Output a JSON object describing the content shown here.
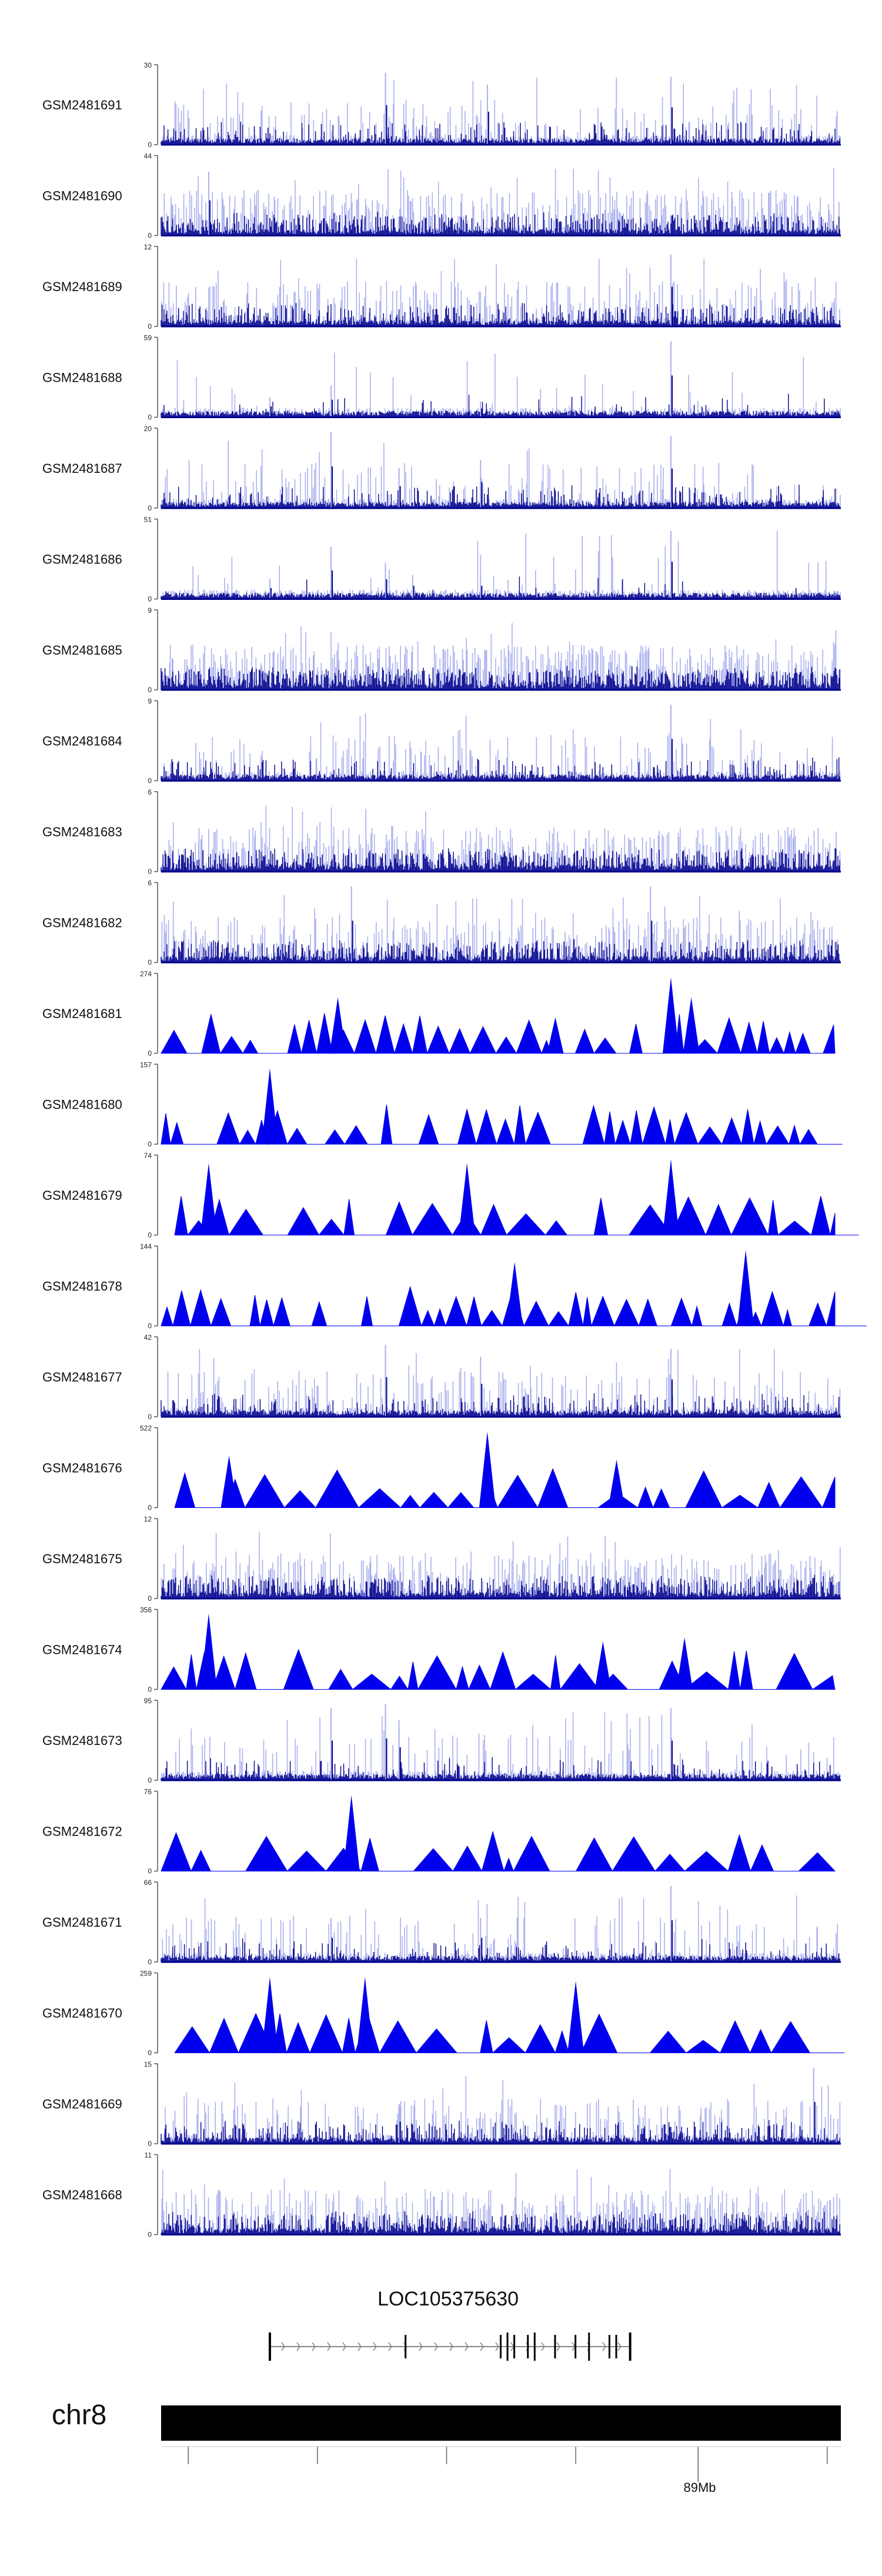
{
  "chart_data": {
    "type": "genome-browser-tracks",
    "chromosome": "chr8",
    "colors": {
      "signal_light": "#aab0ee",
      "signal_dark": "#00008b",
      "signal_fill": "#0000ee",
      "axis": "#555555",
      "gene": "#000000",
      "intron": "#888888",
      "chromosome": "#000000"
    },
    "tracks": [
      {
        "name": "GSM2481691",
        "ymax": 30,
        "style": "bars",
        "peaks": [
          0.33,
          0.48,
          0.75
        ],
        "peak_heights": [
          0.9,
          0.75,
          0.85
        ],
        "density": 0.25
      },
      {
        "name": "GSM2481690",
        "ymax": 44,
        "style": "bars",
        "peaks": [
          0.07
        ],
        "peak_heights": [
          0.8
        ],
        "density": 0.55
      },
      {
        "name": "GSM2481689",
        "ymax": 12,
        "style": "bars",
        "peaks": [
          0.75
        ],
        "peak_heights": [
          0.9
        ],
        "density": 0.4
      },
      {
        "name": "GSM2481688",
        "ymax": 59,
        "style": "bars",
        "peaks": [
          0.16,
          0.25,
          0.47,
          0.75
        ],
        "peak_heights": [
          0.25,
          0.4,
          0.2,
          0.95
        ],
        "density": 0.05
      },
      {
        "name": "GSM2481687",
        "ymax": 20,
        "style": "bars",
        "peaks": [
          0.25,
          0.35,
          0.47,
          0.75
        ],
        "peak_heights": [
          0.95,
          0.5,
          0.6,
          0.9
        ],
        "density": 0.2
      },
      {
        "name": "GSM2481686",
        "ymax": 51,
        "style": "bars",
        "peaks": [
          0.16,
          0.25,
          0.33,
          0.37,
          0.47,
          0.75
        ],
        "peak_heights": [
          0.25,
          0.65,
          0.45,
          0.3,
          0.3,
          0.85
        ],
        "density": 0.04
      },
      {
        "name": "GSM2481685",
        "ymax": 9,
        "style": "bars",
        "peaks": [],
        "peak_heights": [],
        "density": 0.7
      },
      {
        "name": "GSM2481684",
        "ymax": 9,
        "style": "bars",
        "peaks": [
          0.75
        ],
        "peak_heights": [
          0.95
        ],
        "density": 0.2
      },
      {
        "name": "GSM2481683",
        "ymax": 6,
        "style": "bars",
        "peaks": [],
        "peak_heights": [],
        "density": 0.6
      },
      {
        "name": "GSM2481682",
        "ymax": 6,
        "style": "bars",
        "peaks": [
          0.28,
          0.72
        ],
        "peak_heights": [
          0.95,
          0.95
        ],
        "density": 0.5
      },
      {
        "name": "GSM2481681",
        "ymax": 274,
        "style": "triangles",
        "peaks": [
          0.26,
          0.58,
          0.75,
          0.78
        ],
        "peak_heights": [
          0.7,
          0.45,
          0.95,
          0.7
        ],
        "density": 0.3
      },
      {
        "name": "GSM2481680",
        "ymax": 157,
        "style": "triangles",
        "peaks": [
          0.16
        ],
        "peak_heights": [
          0.95
        ],
        "density": 0.35
      },
      {
        "name": "GSM2481679",
        "ymax": 74,
        "style": "triangles",
        "peaks": [
          0.07,
          0.45,
          0.75
        ],
        "peak_heights": [
          0.9,
          0.9,
          0.95
        ],
        "density": 0.55
      },
      {
        "name": "GSM2481678",
        "ymax": 144,
        "style": "triangles",
        "peaks": [
          0.52,
          0.86
        ],
        "peak_heights": [
          0.8,
          0.95
        ],
        "density": 0.3
      },
      {
        "name": "GSM2481677",
        "ymax": 42,
        "style": "bars",
        "peaks": [
          0.33,
          0.47,
          0.75
        ],
        "peak_heights": [
          0.9,
          0.75,
          0.85
        ],
        "density": 0.25
      },
      {
        "name": "GSM2481676",
        "ymax": 522,
        "style": "triangles",
        "peaks": [
          0.1,
          0.48,
          0.67
        ],
        "peak_heights": [
          0.65,
          0.95,
          0.6
        ],
        "density": 0.45
      },
      {
        "name": "GSM2481675",
        "ymax": 12,
        "style": "bars",
        "peaks": [],
        "peak_heights": [],
        "density": 0.55
      },
      {
        "name": "GSM2481674",
        "ymax": 356,
        "style": "triangles",
        "peaks": [
          0.07,
          0.65,
          0.77
        ],
        "peak_heights": [
          0.95,
          0.6,
          0.65
        ],
        "density": 0.5
      },
      {
        "name": "GSM2481673",
        "ymax": 95,
        "style": "bars",
        "peaks": [
          0.25,
          0.33,
          0.35,
          0.75
        ],
        "peak_heights": [
          0.9,
          0.95,
          0.75,
          0.9
        ],
        "density": 0.15
      },
      {
        "name": "GSM2481672",
        "ymax": 76,
        "style": "triangles",
        "peaks": [
          0.28
        ],
        "peak_heights": [
          0.95
        ],
        "density": 0.7
      },
      {
        "name": "GSM2481671",
        "ymax": 66,
        "style": "bars",
        "peaks": [
          0.25,
          0.47,
          0.75
        ],
        "peak_heights": [
          0.55,
          0.55,
          0.95
        ],
        "density": 0.2
      },
      {
        "name": "GSM2481670",
        "ymax": 259,
        "style": "triangles",
        "peaks": [
          0.16,
          0.3,
          0.61
        ],
        "peak_heights": [
          0.95,
          0.95,
          0.9
        ],
        "density": 0.45
      },
      {
        "name": "GSM2481669",
        "ymax": 15,
        "style": "bars",
        "peaks": [
          0.35,
          0.96
        ],
        "peak_heights": [
          0.5,
          0.95
        ],
        "density": 0.35
      },
      {
        "name": "GSM2481668",
        "ymax": 11,
        "style": "bars",
        "peaks": [],
        "peak_heights": [],
        "density": 0.55
      }
    ],
    "gene": {
      "name": "LOC105375630",
      "start": 0.16,
      "end": 0.69,
      "strand": "+",
      "exons": [
        0.16,
        0.36,
        0.5,
        0.51,
        0.52,
        0.54,
        0.55,
        0.58,
        0.61,
        0.63,
        0.66,
        0.67,
        0.69
      ]
    },
    "chromosome_axis": {
      "label": "chr8",
      "ticks": [
        0.04,
        0.23,
        0.42,
        0.61,
        0.79,
        0.98
      ],
      "major_tick": 0.79,
      "major_tick_label": "89Mb"
    }
  }
}
